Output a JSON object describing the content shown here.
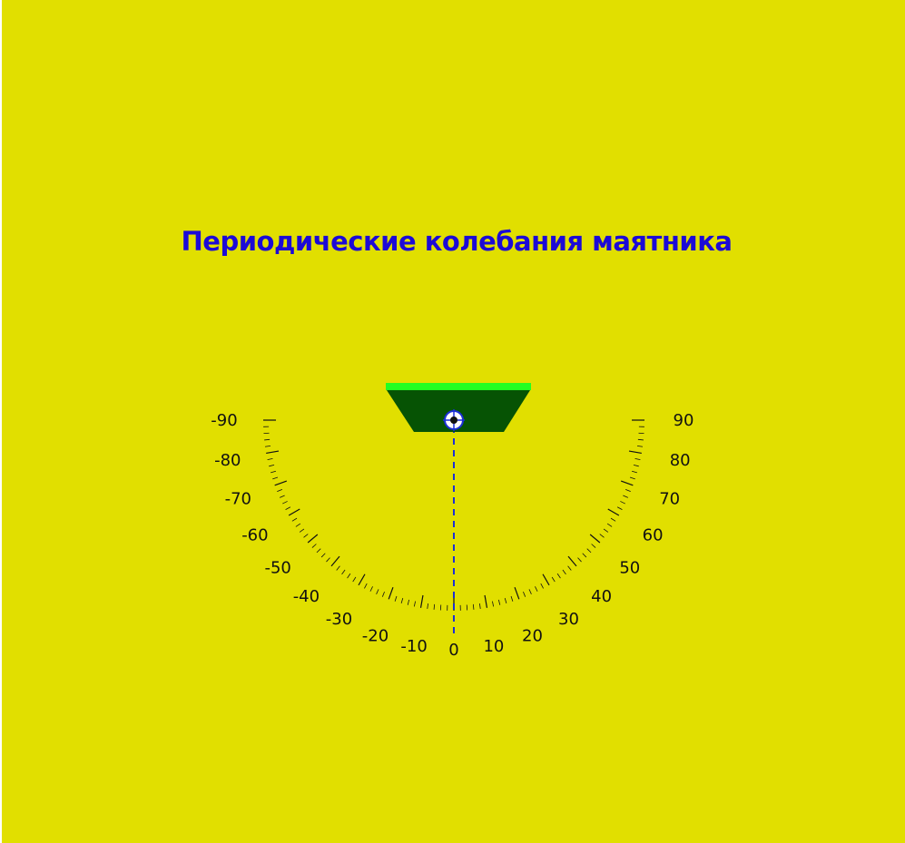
{
  "title": "Периодические колебания маятника",
  "scale": {
    "min_deg": -90,
    "max_deg": 90,
    "major_step_deg": 10,
    "minor_step_deg": 2,
    "labels": [
      "-90",
      "-80",
      "-70",
      "-60",
      "-50",
      "-40",
      "-30",
      "-20",
      "-10",
      "0",
      "10",
      "20",
      "30",
      "40",
      "50",
      "60",
      "70",
      "80",
      "90"
    ]
  },
  "pendulum": {
    "angle_deg": 0
  },
  "colors": {
    "background": "#e1df00",
    "title": "#1c0ad6",
    "mount_top": "#22ff22",
    "mount_body": "#065304",
    "pivot_ring": "#1c2fd6",
    "rod": "#1c2fd6",
    "ticks": "#111111"
  },
  "icons": {
    "pivot": "pivot-target-icon"
  }
}
